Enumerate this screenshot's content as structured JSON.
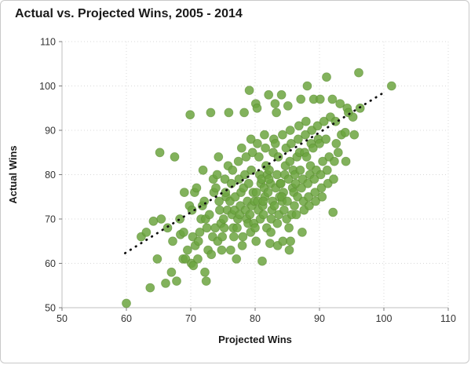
{
  "chart_data": {
    "type": "scatter",
    "title": "Actual vs. Projected Wins, 2005 - 2014",
    "xlabel": "Projected Wins",
    "ylabel": "Actual Wins",
    "xlim": [
      50,
      110
    ],
    "ylim": [
      50,
      110
    ],
    "xticks": [
      50,
      60,
      70,
      80,
      90,
      100,
      110
    ],
    "yticks": [
      50,
      60,
      70,
      80,
      90,
      100,
      110
    ],
    "grid": true,
    "legend": "none",
    "marker_color": "#6CA440",
    "marker_edge_color": "#598A2F",
    "gridline_color": "#d8d8d8",
    "axis_line_color": "#bfbfbf",
    "tick_color": "#7a7a7a",
    "trendline": {
      "style": "dotted",
      "color": "#111111",
      "x1": 59.8,
      "y1": 62.3,
      "x2": 100.3,
      "y2": 98.8
    },
    "points": [
      [
        60,
        51
      ],
      [
        62.3,
        66
      ],
      [
        63.1,
        67
      ],
      [
        63.7,
        54.5
      ],
      [
        64.2,
        69.5
      ],
      [
        64.8,
        61
      ],
      [
        65.2,
        85
      ],
      [
        65.4,
        70
      ],
      [
        66.1,
        55.5
      ],
      [
        66.4,
        68
      ],
      [
        67.2,
        65
      ],
      [
        67.5,
        84
      ],
      [
        67,
        58
      ],
      [
        67.8,
        56
      ],
      [
        68.3,
        70
      ],
      [
        68.8,
        61
      ],
      [
        68.4,
        66.5
      ],
      [
        68.9,
        67
      ],
      [
        69.2,
        61
      ],
      [
        69,
        76
      ],
      [
        69.5,
        63
      ],
      [
        69.8,
        73
      ],
      [
        70.1,
        60
      ],
      [
        70.3,
        66
      ],
      [
        69.9,
        93.5
      ],
      [
        70.4,
        59.5
      ],
      [
        70.7,
        64
      ],
      [
        70.2,
        72
      ],
      [
        70.6,
        76
      ],
      [
        71.1,
        61
      ],
      [
        71.4,
        67
      ],
      [
        70.9,
        77
      ],
      [
        71.6,
        70
      ],
      [
        71.2,
        65
      ],
      [
        71.8,
        73
      ],
      [
        72.2,
        58
      ],
      [
        72.4,
        56
      ],
      [
        71.9,
        81
      ],
      [
        72.5,
        68
      ],
      [
        72.1,
        74
      ],
      [
        72.7,
        63
      ],
      [
        72.3,
        70
      ],
      [
        73.1,
        94
      ],
      [
        73.4,
        66
      ],
      [
        72.9,
        71
      ],
      [
        73.6,
        76
      ],
      [
        73.2,
        62
      ],
      [
        73.8,
        68
      ],
      [
        73.5,
        79
      ],
      [
        74.2,
        65
      ],
      [
        74.5,
        72
      ],
      [
        73.9,
        77
      ],
      [
        74.7,
        69
      ],
      [
        74.1,
        80
      ],
      [
        74.4,
        74
      ],
      [
        74.8,
        63
      ],
      [
        74.3,
        84
      ],
      [
        75.1,
        70
      ],
      [
        75.5,
        75
      ],
      [
        74.9,
        66
      ],
      [
        75.3,
        79
      ],
      [
        75.7,
        72
      ],
      [
        75.2,
        68
      ],
      [
        75.8,
        82
      ],
      [
        75.4,
        76
      ],
      [
        76.2,
        63
      ],
      [
        75.9,
        94
      ],
      [
        76.4,
        71
      ],
      [
        76.1,
        74
      ],
      [
        76.6,
        68
      ],
      [
        76.3,
        78
      ],
      [
        76.8,
        72
      ],
      [
        76.5,
        81
      ],
      [
        76.7,
        66
      ],
      [
        77.1,
        61
      ],
      [
        77.3,
        70
      ],
      [
        76.9,
        75
      ],
      [
        77.5,
        79
      ],
      [
        77.2,
        68
      ],
      [
        77.7,
        73
      ],
      [
        77.4,
        83
      ],
      [
        77.8,
        76
      ],
      [
        77.6,
        71
      ],
      [
        77.9,
        86
      ],
      [
        78.1,
        66
      ],
      [
        78.3,
        94
      ],
      [
        78,
        64
      ],
      [
        78.5,
        72
      ],
      [
        78.2,
        77
      ],
      [
        78.7,
        70
      ],
      [
        78.4,
        80
      ],
      [
        78.8,
        74
      ],
      [
        78.6,
        84
      ],
      [
        78.9,
        69
      ],
      [
        79.1,
        99
      ],
      [
        79.3,
        67
      ],
      [
        79.5,
        73
      ],
      [
        79,
        78
      ],
      [
        79.2,
        71
      ],
      [
        79.7,
        76
      ],
      [
        79.4,
        81
      ],
      [
        79.8,
        69
      ],
      [
        79.6,
        85
      ],
      [
        79.9,
        74
      ],
      [
        79.35,
        88
      ],
      [
        80.1,
        96
      ],
      [
        80.3,
        95
      ],
      [
        80.5,
        72
      ],
      [
        80,
        68
      ],
      [
        80.2,
        76
      ],
      [
        80.7,
        80
      ],
      [
        80.4,
        74
      ],
      [
        80.8,
        70
      ],
      [
        80.6,
        84
      ],
      [
        80.9,
        78
      ],
      [
        80.35,
        87
      ],
      [
        80.15,
        65
      ],
      [
        81.1,
        60.5
      ],
      [
        81.3,
        71
      ],
      [
        81.5,
        75
      ],
      [
        81,
        79
      ],
      [
        81.2,
        73
      ],
      [
        81.7,
        82
      ],
      [
        81.4,
        77
      ],
      [
        81.8,
        68
      ],
      [
        81.6,
        86
      ],
      [
        81.9,
        80
      ],
      [
        81.25,
        74
      ],
      [
        81.45,
        89
      ],
      [
        82.1,
        98
      ],
      [
        82.3,
        64.5
      ],
      [
        82.5,
        70
      ],
      [
        82,
        76
      ],
      [
        82.2,
        81
      ],
      [
        82.7,
        74
      ],
      [
        82.4,
        78
      ],
      [
        82.8,
        85
      ],
      [
        82.6,
        72
      ],
      [
        82.9,
        88
      ],
      [
        82.15,
        79
      ],
      [
        82.45,
        67
      ],
      [
        83.1,
        96
      ],
      [
        83.3,
        94
      ],
      [
        83.5,
        64
      ],
      [
        83,
        73
      ],
      [
        83.2,
        77
      ],
      [
        83.7,
        71
      ],
      [
        83.4,
        80
      ],
      [
        83.8,
        75
      ],
      [
        83.6,
        84
      ],
      [
        83.9,
        78
      ],
      [
        83.15,
        87
      ],
      [
        83.45,
        69
      ],
      [
        84.1,
        98
      ],
      [
        84.3,
        65
      ],
      [
        84.5,
        72
      ],
      [
        84,
        78
      ],
      [
        84.2,
        74
      ],
      [
        84.7,
        82
      ],
      [
        84.4,
        76
      ],
      [
        84.8,
        86
      ],
      [
        84.6,
        80
      ],
      [
        84.9,
        70
      ],
      [
        84.25,
        89
      ],
      [
        84.15,
        75
      ],
      [
        85.1,
        95.5
      ],
      [
        85.3,
        63
      ],
      [
        85.5,
        65
      ],
      [
        85,
        74
      ],
      [
        85.2,
        79
      ],
      [
        85.7,
        71
      ],
      [
        85.4,
        83
      ],
      [
        85.8,
        77
      ],
      [
        85.6,
        87
      ],
      [
        85.9,
        81
      ],
      [
        85.25,
        68
      ],
      [
        85.45,
        90
      ],
      [
        86.1,
        73
      ],
      [
        86.3,
        78
      ],
      [
        86.5,
        84
      ],
      [
        86,
        76
      ],
      [
        86.2,
        80
      ],
      [
        86.7,
        88
      ],
      [
        86.4,
        71
      ],
      [
        86.8,
        91
      ],
      [
        86.6,
        75
      ],
      [
        86.9,
        85
      ],
      [
        87.1,
        97
      ],
      [
        87.3,
        67
      ],
      [
        87.5,
        74
      ],
      [
        87,
        81
      ],
      [
        87.2,
        77
      ],
      [
        87.7,
        85
      ],
      [
        87.4,
        79
      ],
      [
        87.8,
        89
      ],
      [
        87.6,
        72
      ],
      [
        87.9,
        92
      ],
      [
        88.1,
        100
      ],
      [
        88.3,
        75
      ],
      [
        88.5,
        80
      ],
      [
        88,
        84
      ],
      [
        88.2,
        78
      ],
      [
        88.7,
        87
      ],
      [
        88.4,
        73
      ],
      [
        88.8,
        90
      ],
      [
        88.6,
        82
      ],
      [
        89.1,
        97
      ],
      [
        89.3,
        76
      ],
      [
        89.5,
        81
      ],
      [
        89,
        86
      ],
      [
        89.2,
        79
      ],
      [
        89.7,
        91
      ],
      [
        89.4,
        74
      ],
      [
        89.8,
        88
      ],
      [
        90.1,
        97
      ],
      [
        90.3,
        77
      ],
      [
        90.5,
        83
      ],
      [
        90,
        87
      ],
      [
        90.2,
        80
      ],
      [
        90.7,
        92
      ],
      [
        90.4,
        75
      ],
      [
        91.1,
        102
      ],
      [
        91.3,
        78
      ],
      [
        91.5,
        84
      ],
      [
        91,
        88
      ],
      [
        91.2,
        81
      ],
      [
        91.7,
        93
      ],
      [
        92.1,
        71.5
      ],
      [
        92.3,
        83
      ],
      [
        92.5,
        92
      ],
      [
        92,
        97
      ],
      [
        92.2,
        79
      ],
      [
        92.6,
        87
      ],
      [
        93.2,
        96
      ],
      [
        93.4,
        89
      ],
      [
        92.9,
        85
      ],
      [
        94.1,
        83
      ],
      [
        94.3,
        95
      ],
      [
        94.5,
        94
      ],
      [
        94,
        89.5
      ],
      [
        95.2,
        93
      ],
      [
        95.4,
        89
      ],
      [
        96.1,
        103
      ],
      [
        96.3,
        95
      ],
      [
        101.2,
        100
      ]
    ]
  }
}
